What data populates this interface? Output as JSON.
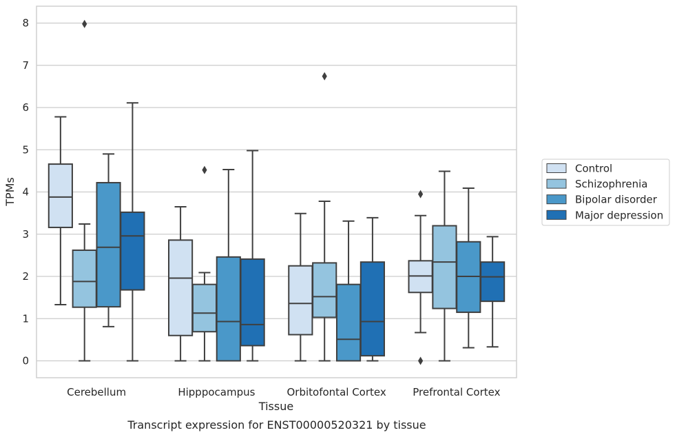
{
  "caption": "Transcript expression for ENST00000520321 by tissue",
  "chart_data": {
    "type": "box",
    "xlabel": "Tissue",
    "ylabel": "TPMs",
    "ylim": [
      -0.4,
      8.4
    ],
    "yticks": [
      "0",
      "1",
      "2",
      "3",
      "4",
      "5",
      "6",
      "7",
      "8"
    ],
    "grid": "horizontal",
    "legend_position": "right",
    "categories": [
      "Cerebellum",
      "Hipppocampus",
      "Orbitofontal Cortex",
      "Prefrontal Cortex"
    ],
    "series": [
      {
        "name": "Control",
        "color": "#d0e1f2",
        "boxes": [
          {
            "whislo": 1.33,
            "q1": 3.16,
            "med": 3.88,
            "q3": 4.66,
            "whishi": 5.78,
            "fliers": []
          },
          {
            "whislo": 0.0,
            "q1": 0.6,
            "med": 1.96,
            "q3": 2.86,
            "whishi": 3.65,
            "fliers": []
          },
          {
            "whislo": 0.0,
            "q1": 0.62,
            "med": 1.36,
            "q3": 2.25,
            "whishi": 3.49,
            "fliers": []
          },
          {
            "whislo": 0.67,
            "q1": 1.62,
            "med": 2.01,
            "q3": 2.37,
            "whishi": 3.44,
            "fliers": [
              3.95,
              0.0
            ]
          }
        ]
      },
      {
        "name": "Schizophrenia",
        "color": "#94c4df",
        "boxes": [
          {
            "whislo": 0.0,
            "q1": 1.27,
            "med": 1.88,
            "q3": 2.62,
            "whishi": 3.24,
            "fliers": [
              7.98
            ]
          },
          {
            "whislo": 0.0,
            "q1": 0.69,
            "med": 1.13,
            "q3": 1.81,
            "whishi": 2.09,
            "fliers": [
              4.52
            ]
          },
          {
            "whislo": 0.0,
            "q1": 1.03,
            "med": 1.52,
            "q3": 2.32,
            "whishi": 3.78,
            "fliers": [
              6.74
            ]
          },
          {
            "whislo": 0.0,
            "q1": 1.24,
            "med": 2.34,
            "q3": 3.2,
            "whishi": 4.49,
            "fliers": []
          }
        ]
      },
      {
        "name": "Bipolar disorder",
        "color": "#4a98c9",
        "boxes": [
          {
            "whislo": 0.81,
            "q1": 1.28,
            "med": 2.69,
            "q3": 4.22,
            "whishi": 4.9,
            "fliers": []
          },
          {
            "whislo": 0.0,
            "q1": 0.0,
            "med": 0.93,
            "q3": 2.46,
            "whishi": 4.53,
            "fliers": []
          },
          {
            "whislo": 0.0,
            "q1": 0.0,
            "med": 0.51,
            "q3": 1.81,
            "whishi": 3.31,
            "fliers": []
          },
          {
            "whislo": 0.31,
            "q1": 1.15,
            "med": 2.0,
            "q3": 2.82,
            "whishi": 4.09,
            "fliers": []
          }
        ]
      },
      {
        "name": "Major depression",
        "color": "#2070b4",
        "boxes": [
          {
            "whislo": 0.0,
            "q1": 1.68,
            "med": 2.96,
            "q3": 3.52,
            "whishi": 6.11,
            "fliers": []
          },
          {
            "whislo": 0.0,
            "q1": 0.36,
            "med": 0.86,
            "q3": 2.41,
            "whishi": 4.98,
            "fliers": []
          },
          {
            "whislo": 0.0,
            "q1": 0.12,
            "med": 0.93,
            "q3": 2.34,
            "whishi": 3.39,
            "fliers": []
          },
          {
            "whislo": 0.33,
            "q1": 1.41,
            "med": 1.99,
            "q3": 2.34,
            "whishi": 2.94,
            "fliers": []
          }
        ]
      }
    ]
  }
}
